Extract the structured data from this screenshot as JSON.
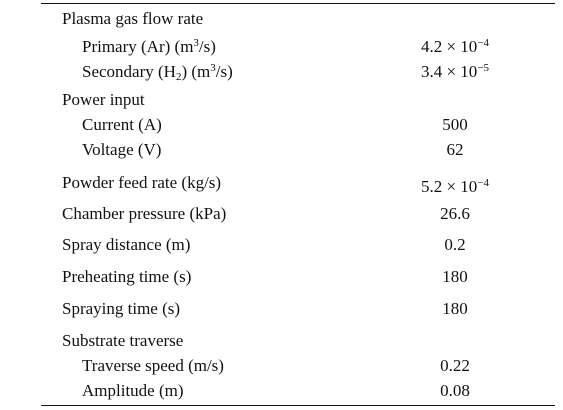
{
  "table": {
    "rows": [
      {
        "label": "Plasma gas flow rate"
      },
      {
        "label": [
          "Primary (Ar) (m",
          "3",
          "/s)"
        ],
        "value": [
          "4.2 × 10",
          "−4"
        ]
      },
      {
        "label": [
          "Secondary (H",
          "2",
          ") (m",
          "3",
          "/s)"
        ],
        "value": [
          "3.4 × 10",
          "−5"
        ]
      },
      {
        "label": "Power input"
      },
      {
        "label": "Current (A)",
        "value": 500
      },
      {
        "label": "Voltage (V)",
        "value": 62
      },
      {
        "label": "Powder feed rate (kg/s)",
        "value": [
          "5.2 × 10",
          "−4"
        ]
      },
      {
        "label": "Chamber pressure (kPa)",
        "value": 26.6
      },
      {
        "label": "Spray distance (m)",
        "value": 0.2
      },
      {
        "label": "Preheating time (s)",
        "value": 180
      },
      {
        "label": "Spraying time (s)",
        "value": 180
      },
      {
        "label": "Substrate traverse"
      },
      {
        "label": "Traverse speed (m/s)",
        "value": 0.22
      },
      {
        "label": "Amplitude (m)",
        "value": 0.08
      }
    ]
  }
}
